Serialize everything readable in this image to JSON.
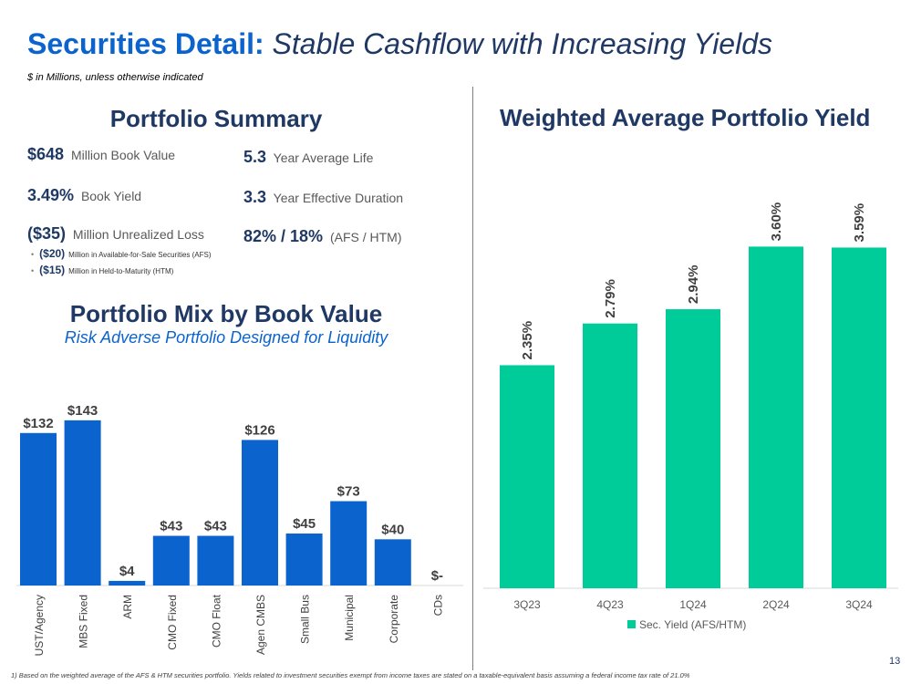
{
  "header": {
    "title_main": "Securities Detail:",
    "title_sub": "Stable Cashflow with Increasing Yields",
    "subtitle": "$ in Millions, unless otherwise indicated"
  },
  "portfolio_summary": {
    "title": "Portfolio Summary",
    "book_value": {
      "value": "$648",
      "label": "Million Book Value"
    },
    "book_yield": {
      "value": "3.49%",
      "label": "Book Yield"
    },
    "unrealized_loss": {
      "value": "($35)",
      "label": "Million Unrealized Loss"
    },
    "afs_loss": {
      "value": "($20)",
      "label": "Million in Available-for-Sale Securities (AFS)"
    },
    "htm_loss": {
      "value": "($15)",
      "label": "Million in Held-to-Maturity (HTM)"
    },
    "average_life": {
      "value": "5.3",
      "label": "Year Average Life"
    },
    "effective_duration": {
      "value": "3.3",
      "label": "Year Effective Duration"
    },
    "afs_htm_split": {
      "value": "82% / 18%",
      "label": "(AFS / HTM)"
    }
  },
  "portfolio_mix": {
    "title": "Portfolio Mix by Book Value",
    "subtitle": "Risk Adverse Portfolio Designed for Liquidity"
  },
  "yield_panel": {
    "title": "Weighted Average Portfolio Yield"
  },
  "chart_data": [
    {
      "type": "bar",
      "title": "Portfolio Mix by Book Value",
      "categories": [
        "UST/Agency",
        "MBS Fixed",
        "ARM",
        "CMO Fixed",
        "CMO Float",
        "Agen CMBS",
        "Small Bus",
        "Municipal",
        "Corporate",
        "CDs"
      ],
      "values": [
        132,
        143,
        4,
        43,
        43,
        126,
        45,
        73,
        40,
        0
      ],
      "labels": [
        "$132",
        "$143",
        "$4",
        "$43",
        "$43",
        "$126",
        "$45",
        "$73",
        "$40",
        "$-"
      ],
      "ylim": [
        0,
        150
      ],
      "color": "#0b63ce"
    },
    {
      "type": "bar",
      "title": "Weighted Average Portfolio Yield",
      "categories": [
        "3Q23",
        "4Q23",
        "1Q24",
        "2Q24",
        "3Q24"
      ],
      "values": [
        2.35,
        2.79,
        2.94,
        3.6,
        3.59
      ],
      "labels": [
        "2.35%",
        "2.79%",
        "2.94%",
        "3.60%",
        "3.59%"
      ],
      "series_name": "Sec. Yield (AFS/HTM)",
      "legend": "bottom",
      "ylim": [
        0,
        3.7
      ],
      "color": "#00cc99"
    }
  ],
  "footnote": "1)  Based on the weighted average of the AFS & HTM securities portfolio. Yields related to investment securities exempt from income taxes are stated on a taxable-equivalent basis assuming a federal income tax rate of 21.0%",
  "page_number": "13"
}
